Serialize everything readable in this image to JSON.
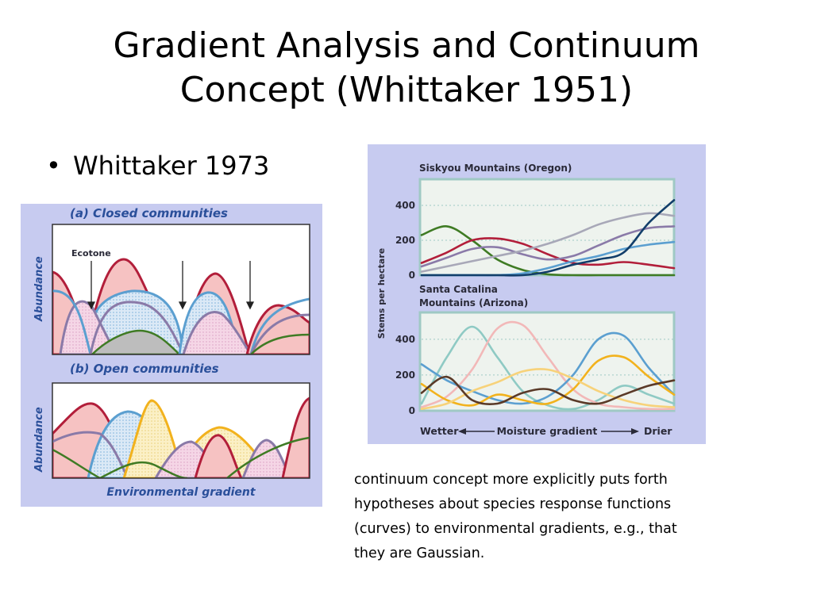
{
  "title_lines": [
    "Gradient Analysis and Continuum",
    "Concept (Whittaker 1951)"
  ],
  "bullet": "Whittaker 1973",
  "caption_lines": [
    "continuum concept more explicitly puts forth",
    "hypotheses about species response functions",
    "(curves) to environmental gradients, e.g., that",
    "they are Gaussian."
  ],
  "colors": {
    "figure_bg": "#c7cbf0",
    "red": "#b21e3a",
    "blue": "#5b9fd0",
    "purple": "#8a7aa8",
    "green": "#3f7b24",
    "yellow": "#f2b21d",
    "navy": "#123e6a",
    "pink": "#f2b8b8",
    "teal": "#8fcac4",
    "brown": "#5a3a28"
  },
  "left_figure": {
    "panel_a_label": "(a) Closed communities",
    "panel_b_label": "(b) Open communities",
    "ecotone_label": "Ecotone",
    "ylabel": "Abundance",
    "xlabel": "Environmental gradient"
  },
  "chart_data": [
    {
      "type": "line",
      "title": "Siskyou Mountains (Oregon)",
      "ylabel": "Stems per hectare",
      "xlabel": "",
      "x": [
        0,
        1,
        2,
        3,
        4,
        5,
        6,
        7,
        8,
        9,
        10
      ],
      "ylim": [
        0,
        550
      ],
      "yticks": [
        0,
        200,
        400
      ],
      "series": [
        {
          "color": "#3f7b24",
          "values": [
            230,
            280,
            200,
            90,
            30,
            5,
            0,
            0,
            0,
            0,
            0
          ]
        },
        {
          "color": "#b21e3a",
          "values": [
            70,
            130,
            200,
            210,
            180,
            120,
            70,
            60,
            75,
            60,
            40
          ]
        },
        {
          "color": "#8a7aa8",
          "values": [
            50,
            100,
            150,
            160,
            120,
            90,
            110,
            170,
            230,
            270,
            280
          ]
        },
        {
          "color": "#a8a8b8",
          "values": [
            20,
            50,
            80,
            110,
            140,
            180,
            230,
            290,
            330,
            355,
            340
          ]
        },
        {
          "color": "#5b9fd0",
          "values": [
            0,
            0,
            0,
            0,
            10,
            40,
            80,
            110,
            150,
            175,
            190
          ]
        },
        {
          "color": "#123e6a",
          "values": [
            0,
            0,
            0,
            0,
            0,
            20,
            60,
            90,
            130,
            300,
            430
          ]
        }
      ]
    },
    {
      "type": "line",
      "title": "Santa Catalina Mountains (Arizona)",
      "ylabel": "Stems per hectare",
      "xlabel": "Moisture gradient",
      "xlabel_left": "Wetter",
      "xlabel_right": "Drier",
      "x": [
        0,
        1,
        2,
        3,
        4,
        5,
        6,
        7,
        8,
        9,
        10
      ],
      "ylim": [
        0,
        550
      ],
      "yticks": [
        0,
        200,
        400
      ],
      "series": [
        {
          "color": "#8fcac4",
          "values": [
            40,
            300,
            470,
            300,
            110,
            30,
            10,
            60,
            140,
            90,
            40
          ]
        },
        {
          "color": "#f2b8b8",
          "values": [
            20,
            80,
            230,
            460,
            480,
            300,
            120,
            40,
            20,
            10,
            10
          ]
        },
        {
          "color": "#5b9fd0",
          "values": [
            260,
            170,
            110,
            60,
            40,
            80,
            200,
            400,
            420,
            240,
            90
          ]
        },
        {
          "color": "#f2b21d",
          "values": [
            150,
            60,
            30,
            90,
            60,
            40,
            120,
            280,
            300,
            190,
            90
          ]
        },
        {
          "color": "#f7d27a",
          "values": [
            10,
            40,
            110,
            160,
            220,
            230,
            180,
            110,
            60,
            30,
            20
          ]
        },
        {
          "color": "#5a3a28",
          "values": [
            100,
            190,
            60,
            40,
            100,
            120,
            60,
            40,
            90,
            140,
            170
          ]
        }
      ]
    }
  ]
}
